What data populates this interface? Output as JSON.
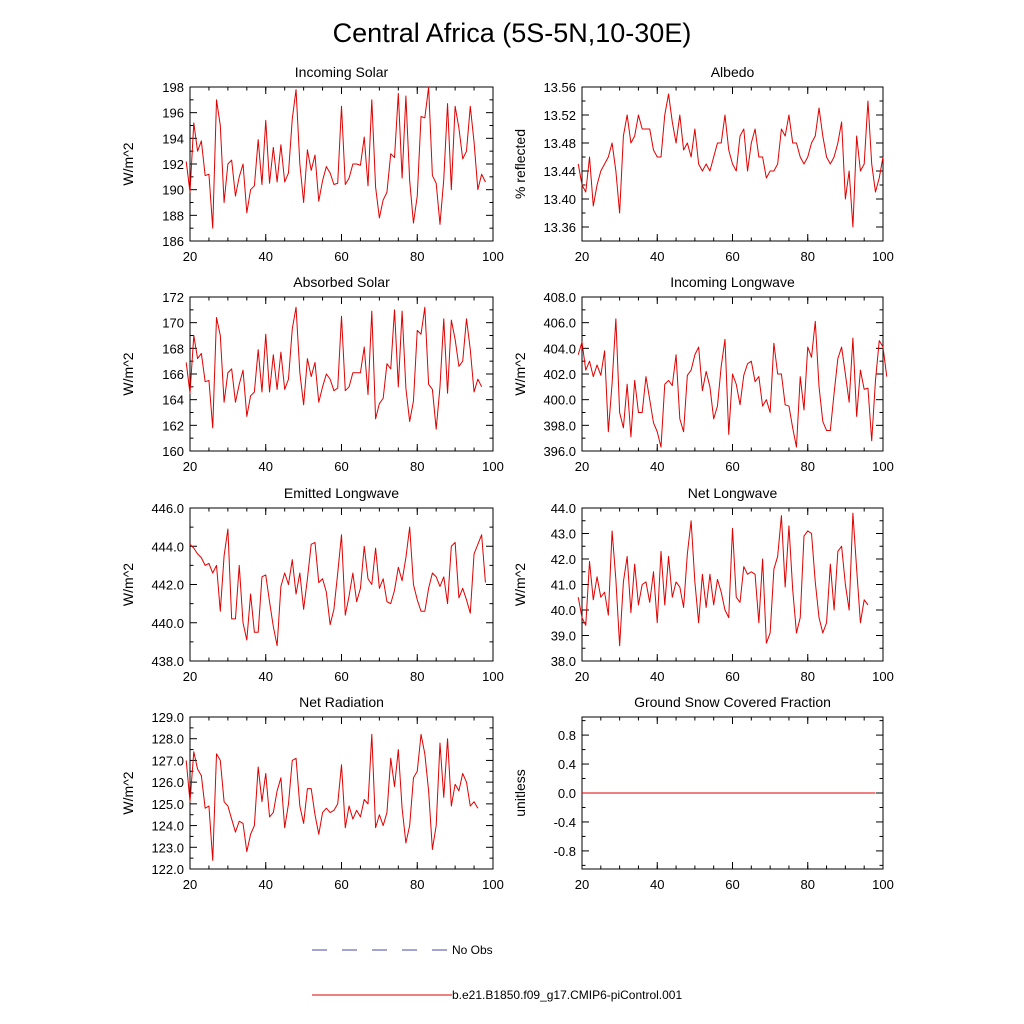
{
  "title": "Central Africa (5S-5N,10-30E)",
  "legend": [
    {
      "label": "No Obs",
      "color": "#4a4aa8",
      "dash": true
    },
    {
      "label": "b.e21.B1850.f09_g17.CMIP6-piControl.001",
      "color": "#e00000",
      "dash": false
    }
  ],
  "chart_data": [
    {
      "type": "line",
      "title": "Incoming Solar",
      "ylabel": "W/m^2",
      "xlim": [
        20,
        100
      ],
      "ylim": [
        186,
        198
      ],
      "xticks": [
        20,
        40,
        60,
        80,
        100
      ],
      "yticks": [
        186,
        188,
        190,
        192,
        194,
        196,
        198
      ],
      "ytick_decimals": 0,
      "x_start": 19,
      "x_step": 1,
      "series": [
        {
          "name": "b.e21.B1850.f09_g17.CMIP6-piControl.001",
          "color": "#e00000",
          "values": [
            192.2,
            189.8,
            195.2,
            193.0,
            193.8,
            191.1,
            191.2,
            187.0,
            197.0,
            195.0,
            189.0,
            192.0,
            192.3,
            189.5,
            191.0,
            192.0,
            188.2,
            190.0,
            190.3,
            193.9,
            190.4,
            195.4,
            190.5,
            193.3,
            190.6,
            193.5,
            190.6,
            191.3,
            195.5,
            197.8,
            192.0,
            189.0,
            193.1,
            191.5,
            192.7,
            189.1,
            190.7,
            191.8,
            191.3,
            190.4,
            190.5,
            196.5,
            190.4,
            190.9,
            192.0,
            192.0,
            191.9,
            194.1,
            190.3,
            197.0,
            190.2,
            187.8,
            189.2,
            189.8,
            192.8,
            192.5,
            197.5,
            190.9,
            197.3,
            190.7,
            187.4,
            189.5,
            195.7,
            195.6,
            198.0,
            191.1,
            190.5,
            187.3,
            190.8,
            196.7,
            190.0,
            196.5,
            194.8,
            192.4,
            193.0,
            196.5,
            193.7,
            190.0,
            191.2,
            190.6
          ]
        }
      ]
    },
    {
      "type": "line",
      "title": "Albedo",
      "ylabel": "% reflected",
      "xlim": [
        20,
        100
      ],
      "ylim": [
        13.34,
        13.56
      ],
      "xticks": [
        20,
        40,
        60,
        80,
        100
      ],
      "yticks": [
        13.36,
        13.4,
        13.44,
        13.48,
        13.52,
        13.56
      ],
      "ytick_decimals": 2,
      "x_start": 19,
      "x_step": 1,
      "series": [
        {
          "name": "b.e21.B1850.f09_g17.CMIP6-piControl.001",
          "color": "#e00000",
          "values": [
            13.45,
            13.42,
            13.41,
            13.46,
            13.39,
            13.42,
            13.44,
            13.45,
            13.46,
            13.48,
            13.44,
            13.38,
            13.49,
            13.52,
            13.48,
            13.49,
            13.52,
            13.5,
            13.5,
            13.5,
            13.47,
            13.46,
            13.46,
            13.52,
            13.55,
            13.51,
            13.48,
            13.52,
            13.47,
            13.48,
            13.46,
            13.5,
            13.45,
            13.44,
            13.45,
            13.44,
            13.46,
            13.48,
            13.48,
            13.52,
            13.47,
            13.45,
            13.44,
            13.49,
            13.5,
            13.44,
            13.48,
            13.5,
            13.46,
            13.46,
            13.43,
            13.44,
            13.44,
            13.45,
            13.5,
            13.49,
            13.52,
            13.48,
            13.48,
            13.46,
            13.45,
            13.46,
            13.48,
            13.49,
            13.53,
            13.49,
            13.46,
            13.45,
            13.46,
            13.48,
            13.51,
            13.4,
            13.44,
            13.36,
            13.49,
            13.44,
            13.45,
            13.54,
            13.45,
            13.41,
            13.43,
            13.46
          ]
        }
      ]
    },
    {
      "type": "line",
      "title": "Absorbed Solar",
      "ylabel": "W/m^2",
      "xlim": [
        20,
        100
      ],
      "ylim": [
        160,
        172
      ],
      "xticks": [
        20,
        40,
        60,
        80,
        100
      ],
      "yticks": [
        160,
        162,
        164,
        166,
        168,
        170,
        172
      ],
      "ytick_decimals": 0,
      "x_start": 19,
      "x_step": 1,
      "series": [
        {
          "name": "b.e21.B1850.f09_g17.CMIP6-piControl.001",
          "color": "#e00000",
          "values": [
            166.9,
            164.5,
            169.0,
            167.2,
            167.6,
            165.4,
            165.5,
            161.8,
            170.4,
            169.0,
            163.8,
            166.1,
            166.4,
            163.8,
            165.2,
            166.3,
            162.7,
            164.3,
            164.6,
            167.9,
            164.6,
            169.1,
            164.6,
            167.5,
            164.8,
            167.7,
            164.8,
            165.6,
            169.5,
            171.2,
            166.1,
            163.6,
            167.2,
            165.8,
            166.9,
            163.8,
            165.0,
            166.0,
            165.6,
            164.7,
            164.9,
            170.5,
            164.7,
            165.0,
            166.1,
            166.1,
            166.1,
            168.1,
            164.4,
            170.9,
            162.5,
            163.7,
            164.1,
            166.8,
            166.4,
            171.0,
            165.0,
            170.9,
            164.9,
            162.3,
            163.9,
            169.4,
            169.1,
            171.2,
            165.2,
            164.8,
            161.7,
            165.0,
            170.3,
            164.5,
            170.2,
            168.7,
            166.6,
            167.0,
            170.3,
            167.9,
            164.6,
            165.6,
            165.0
          ]
        }
      ]
    },
    {
      "type": "line",
      "title": "Incoming Longwave",
      "ylabel": "W/m^2",
      "xlim": [
        20,
        100
      ],
      "ylim": [
        396,
        408
      ],
      "xticks": [
        20,
        40,
        60,
        80,
        100
      ],
      "yticks": [
        396,
        398,
        400,
        402,
        404,
        406,
        408
      ],
      "ytick_decimals": 1,
      "x_start": 19,
      "x_step": 1,
      "series": [
        {
          "name": "b.e21.B1850.f09_g17.CMIP6-piControl.001",
          "color": "#e00000",
          "values": [
            403.5,
            404.5,
            402.3,
            403.0,
            401.8,
            402.7,
            401.9,
            403.8,
            397.5,
            401.3,
            406.3,
            399.0,
            397.8,
            401.2,
            397.1,
            401.5,
            399.0,
            399.0,
            401.8,
            400.0,
            398.2,
            397.5,
            396.3,
            401.2,
            401.5,
            401.1,
            403.5,
            398.5,
            397.5,
            401.9,
            402.3,
            403.5,
            404.1,
            400.7,
            402.2,
            401.0,
            398.5,
            399.5,
            402.6,
            404.7,
            397.3,
            402.0,
            401.2,
            399.6,
            401.9,
            402.8,
            403.0,
            401.4,
            401.8,
            399.5,
            400.0,
            399.0,
            404.4,
            402.0,
            402.0,
            399.6,
            399.5,
            397.8,
            396.3,
            401.8,
            399.2,
            404.1,
            403.3,
            406.1,
            401.0,
            398.3,
            397.6,
            397.6,
            400.5,
            403.2,
            404.1,
            402.0,
            399.8,
            404.8,
            398.7,
            402.3,
            400.8,
            400.9,
            396.8,
            401.5,
            404.6,
            404.1,
            401.8
          ]
        }
      ]
    },
    {
      "type": "line",
      "title": "Emitted Longwave",
      "ylabel": "W/m^2",
      "xlim": [
        20,
        100
      ],
      "ylim": [
        438,
        446
      ],
      "xticks": [
        20,
        40,
        60,
        80,
        100
      ],
      "yticks": [
        438,
        440,
        442,
        444,
        446
      ],
      "ytick_decimals": 1,
      "x_start": 20,
      "x_step": 1,
      "series": [
        {
          "name": "b.e21.B1850.f09_g17.CMIP6-piControl.001",
          "color": "#e00000",
          "values": [
            444.1,
            443.9,
            443.6,
            443.4,
            443.0,
            443.1,
            442.6,
            443.0,
            440.6,
            443.5,
            444.9,
            440.2,
            440.2,
            443.0,
            440.0,
            439.1,
            441.5,
            439.5,
            439.5,
            442.4,
            442.5,
            441.1,
            439.8,
            438.8,
            441.9,
            442.6,
            442.0,
            443.3,
            441.5,
            442.6,
            440.7,
            442.3,
            444.1,
            444.2,
            442.1,
            442.3,
            441.6,
            439.9,
            440.7,
            442.6,
            444.6,
            440.4,
            441.4,
            442.6,
            441.1,
            441.8,
            444.0,
            442.3,
            442.0,
            443.9,
            441.8,
            442.3,
            441.1,
            441.0,
            441.7,
            442.9,
            442.2,
            443.4,
            445.0,
            442.0,
            441.2,
            440.6,
            440.6,
            441.8,
            442.6,
            442.4,
            441.9,
            442.4,
            441.0,
            444.0,
            444.2,
            441.3,
            441.8,
            441.2,
            440.5,
            443.6,
            444.1,
            444.6,
            442.1
          ]
        }
      ]
    },
    {
      "type": "line",
      "title": "Net Longwave",
      "ylabel": "W/m^2",
      "xlim": [
        20,
        100
      ],
      "ylim": [
        38,
        44
      ],
      "xticks": [
        20,
        40,
        60,
        80,
        100
      ],
      "yticks": [
        38,
        39,
        40,
        41,
        42,
        43,
        44
      ],
      "ytick_decimals": 1,
      "x_start": 19,
      "x_step": 1,
      "series": [
        {
          "name": "b.e21.B1850.f09_g17.CMIP6-piControl.001",
          "color": "#e00000",
          "values": [
            40.5,
            39.7,
            39.4,
            41.9,
            40.4,
            41.3,
            40.5,
            40.7,
            39.8,
            43.1,
            41.2,
            38.6,
            41.1,
            42.1,
            39.9,
            41.8,
            40.2,
            41.0,
            41.1,
            40.3,
            41.5,
            39.5,
            42.3,
            40.2,
            42.1,
            40.5,
            41.1,
            40.9,
            40.1,
            42.2,
            43.5,
            41.1,
            39.5,
            41.4,
            40.1,
            41.4,
            40.2,
            41.2,
            40.7,
            40.0,
            39.7,
            43.2,
            40.5,
            40.3,
            41.7,
            41.4,
            41.5,
            41.4,
            39.5,
            42.0,
            38.7,
            39.1,
            41.6,
            42.1,
            43.7,
            40.9,
            43.3,
            40.8,
            39.1,
            39.7,
            42.9,
            43.1,
            43.0,
            41.1,
            39.7,
            39.1,
            39.5,
            41.8,
            40.0,
            42.3,
            42.5,
            41.0,
            40.0,
            43.8,
            41.6,
            39.5,
            40.4,
            40.2
          ]
        }
      ]
    },
    {
      "type": "line",
      "title": "Net Radiation",
      "ylabel": "W/m^2",
      "xlim": [
        20,
        100
      ],
      "ylim": [
        122,
        129
      ],
      "xticks": [
        20,
        40,
        60,
        80,
        100
      ],
      "yticks": [
        122,
        123,
        124,
        125,
        126,
        127,
        128,
        129
      ],
      "ytick_decimals": 1,
      "x_start": 19,
      "x_step": 1,
      "series": [
        {
          "name": "b.e21.B1850.f09_g17.CMIP6-piControl.001",
          "color": "#e00000",
          "values": [
            127.0,
            125.1,
            127.4,
            126.6,
            126.3,
            124.8,
            124.9,
            122.4,
            127.3,
            127.0,
            125.1,
            124.9,
            124.3,
            123.7,
            124.2,
            124.1,
            122.8,
            123.6,
            124.0,
            126.7,
            125.1,
            126.4,
            124.4,
            124.6,
            125.6,
            126.2,
            123.9,
            125.0,
            127.0,
            127.1,
            124.9,
            124.1,
            125.7,
            125.7,
            124.5,
            123.6,
            124.6,
            124.8,
            124.6,
            124.7,
            125.0,
            126.8,
            123.9,
            124.9,
            124.3,
            124.7,
            124.4,
            125.2,
            125.0,
            128.2,
            123.9,
            124.5,
            124.0,
            124.6,
            127.1,
            125.8,
            127.5,
            124.8,
            123.2,
            124.0,
            126.2,
            126.5,
            128.2,
            127.3,
            125.6,
            122.9,
            124.0,
            127.8,
            125.3,
            128.0,
            124.9,
            125.9,
            125.6,
            126.4,
            126.0,
            124.9,
            125.1,
            124.8
          ]
        }
      ]
    },
    {
      "type": "line",
      "title": "Ground Snow Covered Fraction",
      "ylabel": "unitless",
      "xlim": [
        20,
        100
      ],
      "ylim": [
        -1.05,
        1.05
      ],
      "xticks": [
        20,
        40,
        60,
        80,
        100
      ],
      "yticks": [
        -0.8,
        -0.4,
        0.0,
        0.4,
        0.8
      ],
      "ytick_decimals": 1,
      "x_start": 20,
      "x_step": 1,
      "series": [
        {
          "name": "b.e21.B1850.f09_g17.CMIP6-piControl.001",
          "color": "#e00000",
          "values": [
            0,
            0,
            0,
            0,
            0,
            0,
            0,
            0,
            0,
            0,
            0,
            0,
            0,
            0,
            0,
            0,
            0,
            0,
            0,
            0,
            0,
            0,
            0,
            0,
            0,
            0,
            0,
            0,
            0,
            0,
            0,
            0,
            0,
            0,
            0,
            0,
            0,
            0,
            0,
            0,
            0,
            0,
            0,
            0,
            0,
            0,
            0,
            0,
            0,
            0,
            0,
            0,
            0,
            0,
            0,
            0,
            0,
            0,
            0,
            0,
            0,
            0,
            0,
            0,
            0,
            0,
            0,
            0,
            0,
            0,
            0,
            0,
            0,
            0,
            0,
            0,
            0,
            0,
            0
          ]
        }
      ]
    }
  ]
}
